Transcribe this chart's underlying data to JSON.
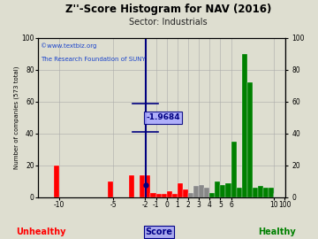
{
  "title": "Z''-Score Histogram for NAV (2016)",
  "subtitle": "Sector: Industrials",
  "watermark1": "©www.textbiz.org",
  "watermark2": "The Research Foundation of SUNY",
  "xlabel_center": "Score",
  "xlabel_left": "Unhealthy",
  "xlabel_right": "Healthy",
  "ylabel_left": "Number of companies (573 total)",
  "nav_score": -1.9684,
  "nav_label": "-1.9684",
  "background_color": "#deded0",
  "grid_color": "#aaaaaa",
  "bars": [
    [
      -12,
      -11.5,
      0,
      "red"
    ],
    [
      -11.5,
      -11,
      0,
      "red"
    ],
    [
      -11,
      -10.5,
      0,
      "red"
    ],
    [
      -10.5,
      -10,
      20,
      "red"
    ],
    [
      -10,
      -9.5,
      0,
      "red"
    ],
    [
      -9.5,
      -9,
      0,
      "red"
    ],
    [
      -9,
      -8.5,
      0,
      "red"
    ],
    [
      -8.5,
      -8,
      0,
      "red"
    ],
    [
      -8,
      -7.5,
      0,
      "red"
    ],
    [
      -7.5,
      -7,
      0,
      "red"
    ],
    [
      -7,
      -6.5,
      0,
      "red"
    ],
    [
      -6.5,
      -6,
      0,
      "red"
    ],
    [
      -6,
      -5.5,
      0,
      "red"
    ],
    [
      -5.5,
      -5,
      10,
      "red"
    ],
    [
      -5,
      -4.5,
      0,
      "red"
    ],
    [
      -4.5,
      -4,
      0,
      "red"
    ],
    [
      -4,
      -3.5,
      0,
      "red"
    ],
    [
      -3.5,
      -3,
      14,
      "red"
    ],
    [
      -3,
      -2.5,
      0,
      "red"
    ],
    [
      -2.5,
      -2,
      14,
      "red"
    ],
    [
      -2,
      -1.5,
      14,
      "red"
    ],
    [
      -1.5,
      -1,
      3,
      "red"
    ],
    [
      -1,
      -0.5,
      2,
      "red"
    ],
    [
      -0.5,
      0,
      2,
      "red"
    ],
    [
      0,
      0.5,
      4,
      "red"
    ],
    [
      0.5,
      1,
      2,
      "red"
    ],
    [
      1,
      1.5,
      9,
      "red"
    ],
    [
      1.5,
      2,
      5,
      "red"
    ],
    [
      2,
      2.5,
      3,
      "#888888"
    ],
    [
      2.5,
      3,
      7,
      "#888888"
    ],
    [
      3,
      3.5,
      8,
      "#888888"
    ],
    [
      3.5,
      4,
      6,
      "#888888"
    ],
    [
      4,
      4.5,
      3,
      "green"
    ],
    [
      4.5,
      5,
      10,
      "green"
    ],
    [
      5,
      5.5,
      8,
      "green"
    ],
    [
      5.5,
      6,
      9,
      "green"
    ],
    [
      6,
      6.5,
      35,
      "green"
    ],
    [
      6.5,
      7,
      6,
      "green"
    ],
    [
      7,
      7.5,
      90,
      "green"
    ],
    [
      7.5,
      8,
      72,
      "green"
    ],
    [
      8,
      8.5,
      6,
      "green"
    ],
    [
      8.5,
      9,
      7,
      "green"
    ],
    [
      9,
      9.5,
      6,
      "green"
    ],
    [
      9.5,
      10,
      6,
      "green"
    ],
    [
      10,
      10.5,
      2,
      "green"
    ],
    [
      10.5,
      11,
      3,
      "green"
    ]
  ],
  "xtick_scores": [
    -10,
    -5,
    -2,
    -1,
    0,
    1,
    2,
    3,
    4,
    5,
    6,
    10,
    100
  ],
  "xtick_labels": [
    "-10",
    "-5",
    "-2",
    "-1",
    "0",
    "1",
    "2",
    "3",
    "4",
    "5",
    "6",
    "10",
    "100"
  ],
  "ylim": [
    0,
    100
  ],
  "yticks": [
    0,
    20,
    40,
    60,
    80,
    100
  ]
}
